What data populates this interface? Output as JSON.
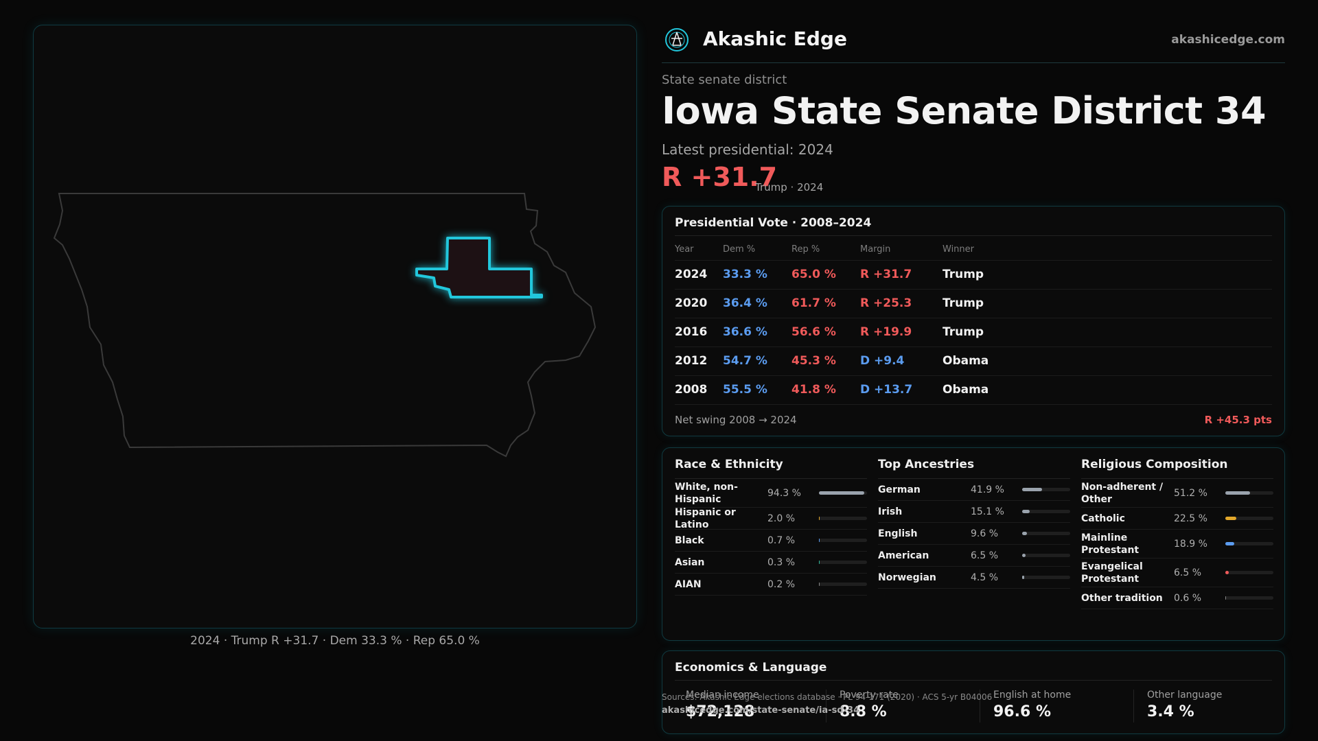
{
  "brand": {
    "name": "Akashic Edge",
    "site": "akashicedge.com",
    "logo_icon": "constellation-logo-icon"
  },
  "header": {
    "kicker": "State senate district",
    "title": "Iowa State Senate District 34",
    "latest": "Latest presidential: 2024",
    "margin": "R +31.7",
    "margin_sub": "Trump · 2024"
  },
  "map": {
    "caption": "2024 · Trump R +31.7 · Dem 33.3 % · Rep 65.0 %",
    "highlight_color": "#22c7dc",
    "outline_color": "#3a3a3a"
  },
  "presidential": {
    "title": "Presidential Vote · 2008–2024",
    "headers": [
      "Year",
      "Dem %",
      "Rep %",
      "Margin",
      "Winner"
    ],
    "rows": [
      {
        "year": "2024",
        "dem": "33.3 %",
        "rep": "65.0 %",
        "margin": "R +31.7",
        "party": "R",
        "winner": "Trump"
      },
      {
        "year": "2020",
        "dem": "36.4 %",
        "rep": "61.7 %",
        "margin": "R +25.3",
        "party": "R",
        "winner": "Trump"
      },
      {
        "year": "2016",
        "dem": "36.6 %",
        "rep": "56.6 %",
        "margin": "R +19.9",
        "party": "R",
        "winner": "Trump"
      },
      {
        "year": "2012",
        "dem": "54.7 %",
        "rep": "45.3 %",
        "margin": "D +9.4",
        "party": "D",
        "winner": "Obama"
      },
      {
        "year": "2008",
        "dem": "55.5 %",
        "rep": "41.8 %",
        "margin": "D +13.7",
        "party": "D",
        "winner": "Obama"
      }
    ],
    "swing_label": "Net swing 2008 → 2024",
    "swing_value": "R +45.3 pts"
  },
  "race": {
    "title": "Race & Ethnicity",
    "items": [
      {
        "label": "White, non-Hispanic",
        "value": "94.3 %",
        "pct": 94.3,
        "color": "#9aa3ad"
      },
      {
        "label": "Hispanic or Latino",
        "value": "2.0 %",
        "pct": 2.0,
        "color": "#e3a82b"
      },
      {
        "label": "Black",
        "value": "0.7 %",
        "pct": 0.7,
        "color": "#5b9cf0"
      },
      {
        "label": "Asian",
        "value": "0.3 %",
        "pct": 0.3,
        "color": "#2fb89a"
      },
      {
        "label": "AIAN",
        "value": "0.2 %",
        "pct": 0.2,
        "color": "#888888"
      }
    ]
  },
  "ancestries": {
    "title": "Top Ancestries",
    "items": [
      {
        "label": "German",
        "value": "41.9 %",
        "pct": 41.9,
        "color": "#9aa3ad"
      },
      {
        "label": "Irish",
        "value": "15.1 %",
        "pct": 15.1,
        "color": "#9aa3ad"
      },
      {
        "label": "English",
        "value": "9.6 %",
        "pct": 9.6,
        "color": "#9aa3ad"
      },
      {
        "label": "American",
        "value": "6.5 %",
        "pct": 6.5,
        "color": "#9aa3ad"
      },
      {
        "label": "Norwegian",
        "value": "4.5 %",
        "pct": 4.5,
        "color": "#9aa3ad"
      }
    ]
  },
  "religion": {
    "title": "Religious Composition",
    "items": [
      {
        "label": "Non-adherent / Other",
        "value": "51.2 %",
        "pct": 51.2,
        "color": "#9aa3ad"
      },
      {
        "label": "Catholic",
        "value": "22.5 %",
        "pct": 22.5,
        "color": "#e3a82b"
      },
      {
        "label": "Mainline Protestant",
        "value": "18.9 %",
        "pct": 18.9,
        "color": "#5b9cf0"
      },
      {
        "label": "Evangelical Protestant",
        "value": "6.5 %",
        "pct": 6.5,
        "color": "#f05a5a"
      },
      {
        "label": "Other tradition",
        "value": "0.6 %",
        "pct": 0.6,
        "color": "#888888"
      }
    ]
  },
  "economics": {
    "title": "Economics & Language",
    "stats": [
      {
        "label": "Median income",
        "value": "$72,128"
      },
      {
        "label": "Poverty rate",
        "value": "8.8 %"
      },
      {
        "label": "English at home",
        "value": "96.6 %"
      },
      {
        "label": "Other language",
        "value": "3.4 %"
      }
    ]
  },
  "sources": {
    "text": "Sources: Akashic Edge elections database · PL 94-171 (2020) · ACS 5-yr B04006",
    "url": "akashicedge.com/state-senate/ia-sd-34"
  }
}
